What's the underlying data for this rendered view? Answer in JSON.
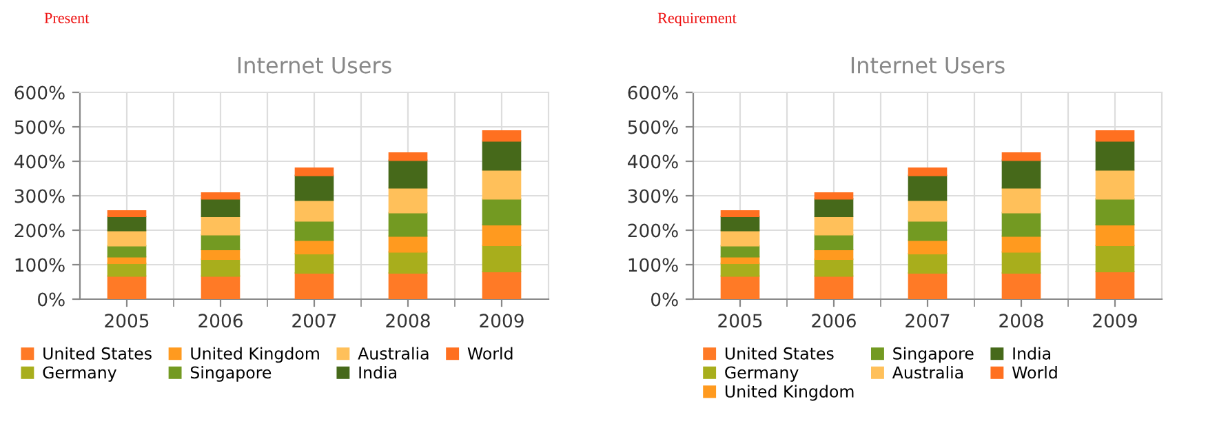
{
  "chart_data": [
    {
      "type": "bar",
      "stacked": true,
      "title": "Internet Users",
      "annotations": [
        "Present"
      ],
      "categories": [
        "2005",
        "2006",
        "2007",
        "2008",
        "2009"
      ],
      "series": [
        {
          "name": "United States",
          "color": "#ff7a26",
          "values": [
            67,
            67,
            76,
            76,
            80
          ]
        },
        {
          "name": "Germany",
          "color": "#a8ae1c",
          "values": [
            37,
            49,
            56,
            61,
            76
          ]
        },
        {
          "name": "United Kingdom",
          "color": "#ff9a1f",
          "values": [
            19,
            28,
            39,
            46,
            60
          ]
        },
        {
          "name": "Singapore",
          "color": "#739a22",
          "values": [
            32,
            43,
            56,
            68,
            75
          ]
        },
        {
          "name": "Australia",
          "color": "#ffc05a",
          "values": [
            44,
            53,
            60,
            72,
            84
          ]
        },
        {
          "name": "India",
          "color": "#46691a",
          "values": [
            41,
            51,
            72,
            80,
            84
          ]
        },
        {
          "name": "World",
          "color": "#ff7020",
          "values": [
            16,
            17,
            21,
            21,
            29
          ]
        }
      ],
      "ylim": [
        0,
        600
      ],
      "yticks": [
        {
          "value": 0,
          "label": "0%"
        },
        {
          "value": 100,
          "label": "100%"
        },
        {
          "value": 200,
          "label": "200%"
        },
        {
          "value": 300,
          "label": "300%"
        },
        {
          "value": 400,
          "label": "400%"
        },
        {
          "value": 500,
          "label": "500%"
        },
        {
          "value": 600,
          "label": "600%"
        }
      ],
      "grid": true,
      "legend": "bottom"
    },
    {
      "type": "bar",
      "stacked": true,
      "title": "Internet Users",
      "annotations": [
        "Requirement"
      ],
      "categories": [
        "2005",
        "2006",
        "2007",
        "2008",
        "2009"
      ],
      "series": [
        {
          "name": "United States",
          "color": "#ff7a26",
          "values": [
            67,
            67,
            76,
            76,
            80
          ]
        },
        {
          "name": "Germany",
          "color": "#a8ae1c",
          "values": [
            37,
            49,
            56,
            61,
            76
          ]
        },
        {
          "name": "United Kingdom",
          "color": "#ff9a1f",
          "values": [
            19,
            28,
            39,
            46,
            60
          ]
        },
        {
          "name": "Singapore",
          "color": "#739a22",
          "values": [
            32,
            43,
            56,
            68,
            75
          ]
        },
        {
          "name": "Australia",
          "color": "#ffc05a",
          "values": [
            44,
            53,
            60,
            72,
            84
          ]
        },
        {
          "name": "India",
          "color": "#46691a",
          "values": [
            41,
            51,
            72,
            80,
            84
          ]
        },
        {
          "name": "World",
          "color": "#ff7020",
          "values": [
            16,
            17,
            21,
            21,
            29
          ]
        }
      ],
      "ylim": [
        0,
        600
      ],
      "yticks": [
        {
          "value": 0,
          "label": "0%"
        },
        {
          "value": 100,
          "label": "100%"
        },
        {
          "value": 200,
          "label": "200%"
        },
        {
          "value": 300,
          "label": "300%"
        },
        {
          "value": 400,
          "label": "400%"
        },
        {
          "value": 500,
          "label": "500%"
        },
        {
          "value": 600,
          "label": "600%"
        }
      ],
      "grid": true,
      "legend": "bottom"
    }
  ]
}
